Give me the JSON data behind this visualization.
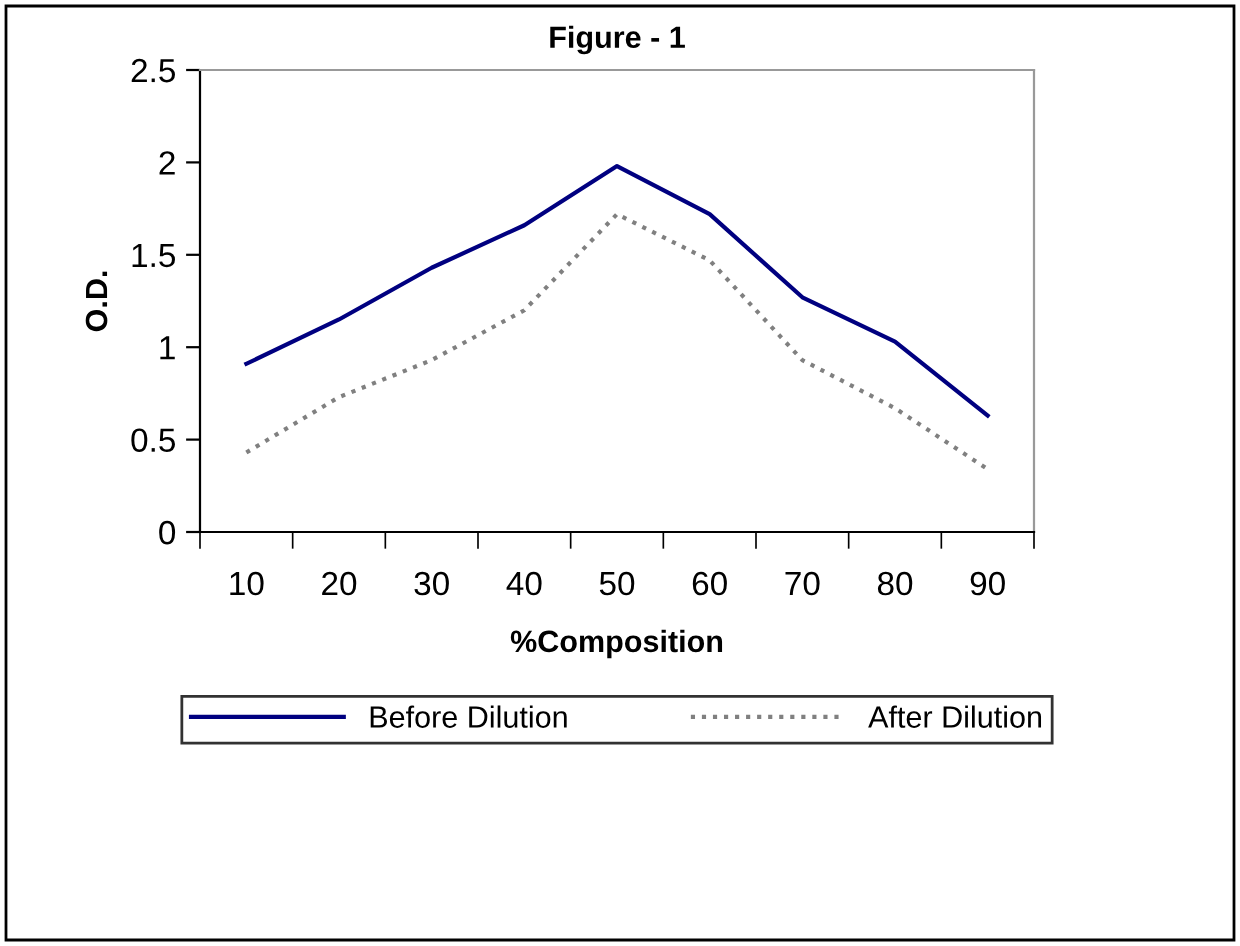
{
  "chart_data": {
    "type": "line",
    "title": "Figure - 1",
    "xlabel": "%Composition",
    "ylabel": "O.D.",
    "categories": [
      "10",
      "20",
      "30",
      "40",
      "50",
      "60",
      "70",
      "80",
      "90"
    ],
    "series": [
      {
        "name": "Before Dilution",
        "color": "#000080",
        "line_style": "solid",
        "values": [
          0.91,
          1.15,
          1.43,
          1.66,
          1.98,
          1.72,
          1.27,
          1.03,
          0.63
        ]
      },
      {
        "name": "After Dilution",
        "color": "#808080",
        "line_style": "dotted",
        "values": [
          0.43,
          0.73,
          0.93,
          1.2,
          1.72,
          1.47,
          0.93,
          0.67,
          0.34
        ]
      }
    ],
    "ylim": [
      0,
      2.5
    ],
    "yticks": [
      0,
      0.5,
      1,
      1.5,
      2,
      2.5
    ],
    "grid": false,
    "legend": "bottom"
  }
}
